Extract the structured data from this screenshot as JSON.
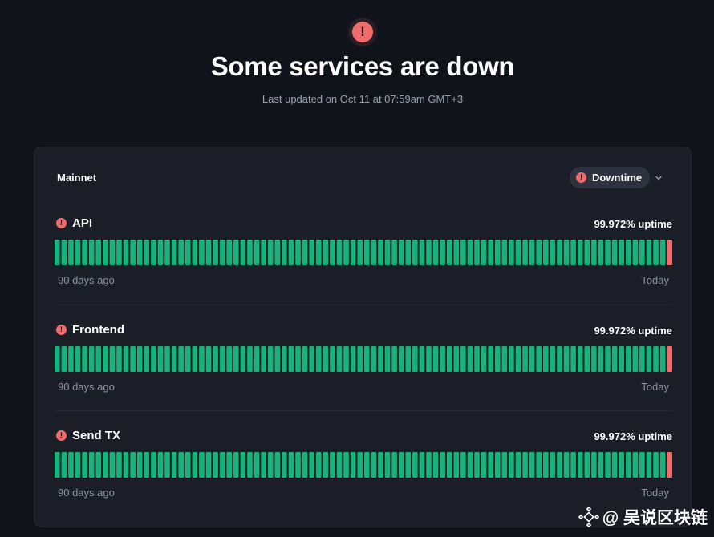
{
  "header": {
    "status_icon": "exclamation-circle-icon",
    "title": "Some services are down",
    "last_updated": "Last updated on Oct 11 at 07:59am GMT+3"
  },
  "card": {
    "title": "Mainnet",
    "filter_label": "Downtime",
    "filter_icon": "exclamation-circle-icon",
    "dropdown_icon": "chevron-down-icon"
  },
  "colors": {
    "operational": "#16b37b",
    "down": "#f26b6b",
    "background": "#11131a",
    "card": "#1b1e27"
  },
  "services": [
    {
      "name": "API",
      "status": "down",
      "uptime": "99.972% uptime",
      "start_label": "90 days ago",
      "end_label": "Today",
      "daily_status": [
        "up",
        "up",
        "up",
        "up",
        "up",
        "up",
        "up",
        "up",
        "up",
        "up",
        "up",
        "up",
        "up",
        "up",
        "up",
        "up",
        "up",
        "up",
        "up",
        "up",
        "up",
        "up",
        "up",
        "up",
        "up",
        "up",
        "up",
        "up",
        "up",
        "up",
        "up",
        "up",
        "up",
        "up",
        "up",
        "up",
        "up",
        "up",
        "up",
        "up",
        "up",
        "up",
        "up",
        "up",
        "up",
        "up",
        "up",
        "up",
        "up",
        "up",
        "up",
        "up",
        "up",
        "up",
        "up",
        "up",
        "up",
        "up",
        "up",
        "up",
        "up",
        "up",
        "up",
        "up",
        "up",
        "up",
        "up",
        "up",
        "up",
        "up",
        "up",
        "up",
        "up",
        "up",
        "up",
        "up",
        "up",
        "up",
        "up",
        "up",
        "up",
        "up",
        "up",
        "up",
        "up",
        "up",
        "up",
        "up",
        "up",
        "down"
      ]
    },
    {
      "name": "Frontend",
      "status": "down",
      "uptime": "99.972% uptime",
      "start_label": "90 days ago",
      "end_label": "Today",
      "daily_status": [
        "up",
        "up",
        "up",
        "up",
        "up",
        "up",
        "up",
        "up",
        "up",
        "up",
        "up",
        "up",
        "up",
        "up",
        "up",
        "up",
        "up",
        "up",
        "up",
        "up",
        "up",
        "up",
        "up",
        "up",
        "up",
        "up",
        "up",
        "up",
        "up",
        "up",
        "up",
        "up",
        "up",
        "up",
        "up",
        "up",
        "up",
        "up",
        "up",
        "up",
        "up",
        "up",
        "up",
        "up",
        "up",
        "up",
        "up",
        "up",
        "up",
        "up",
        "up",
        "up",
        "up",
        "up",
        "up",
        "up",
        "up",
        "up",
        "up",
        "up",
        "up",
        "up",
        "up",
        "up",
        "up",
        "up",
        "up",
        "up",
        "up",
        "up",
        "up",
        "up",
        "up",
        "up",
        "up",
        "up",
        "up",
        "up",
        "up",
        "up",
        "up",
        "up",
        "up",
        "up",
        "up",
        "up",
        "up",
        "up",
        "up",
        "down"
      ]
    },
    {
      "name": "Send TX",
      "status": "down",
      "uptime": "99.972% uptime",
      "start_label": "90 days ago",
      "end_label": "Today",
      "daily_status": [
        "up",
        "up",
        "up",
        "up",
        "up",
        "up",
        "up",
        "up",
        "up",
        "up",
        "up",
        "up",
        "up",
        "up",
        "up",
        "up",
        "up",
        "up",
        "up",
        "up",
        "up",
        "up",
        "up",
        "up",
        "up",
        "up",
        "up",
        "up",
        "up",
        "up",
        "up",
        "up",
        "up",
        "up",
        "up",
        "up",
        "up",
        "up",
        "up",
        "up",
        "up",
        "up",
        "up",
        "up",
        "up",
        "up",
        "up",
        "up",
        "up",
        "up",
        "up",
        "up",
        "up",
        "up",
        "up",
        "up",
        "up",
        "up",
        "up",
        "up",
        "up",
        "up",
        "up",
        "up",
        "up",
        "up",
        "up",
        "up",
        "up",
        "up",
        "up",
        "up",
        "up",
        "up",
        "up",
        "up",
        "up",
        "up",
        "up",
        "up",
        "up",
        "up",
        "up",
        "up",
        "up",
        "up",
        "up",
        "up",
        "up",
        "down"
      ]
    }
  ],
  "watermark": {
    "icon": "binance-diamond-icon",
    "text": "@ 吴说区块链"
  }
}
